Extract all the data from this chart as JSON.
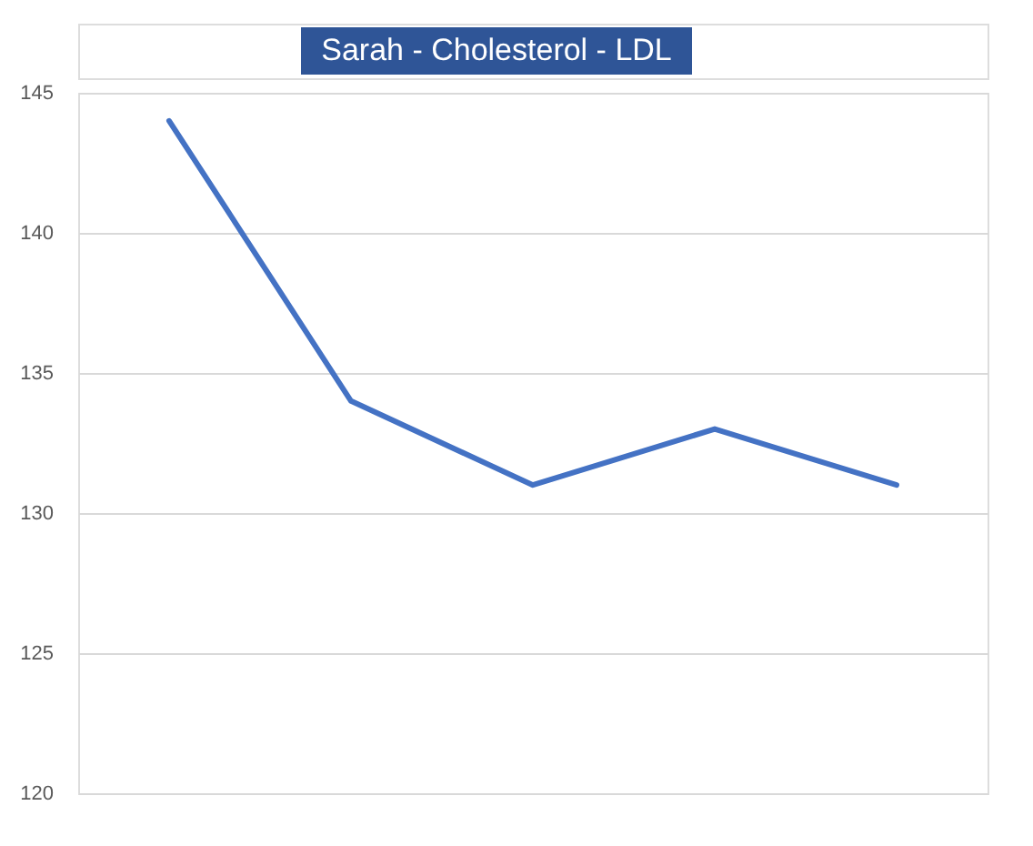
{
  "chart_data": {
    "type": "line",
    "title": "Sarah - Cholesterol - LDL",
    "categories": [
      null,
      null,
      null,
      null,
      null
    ],
    "series": [
      {
        "color": "#4472c4",
        "values": [
          144,
          134,
          131,
          133,
          131
        ]
      }
    ],
    "ylim": [
      120,
      145
    ],
    "yticks": [
      120,
      125,
      130,
      135,
      140,
      145
    ],
    "grid": "y",
    "tick_labels": "y"
  }
}
